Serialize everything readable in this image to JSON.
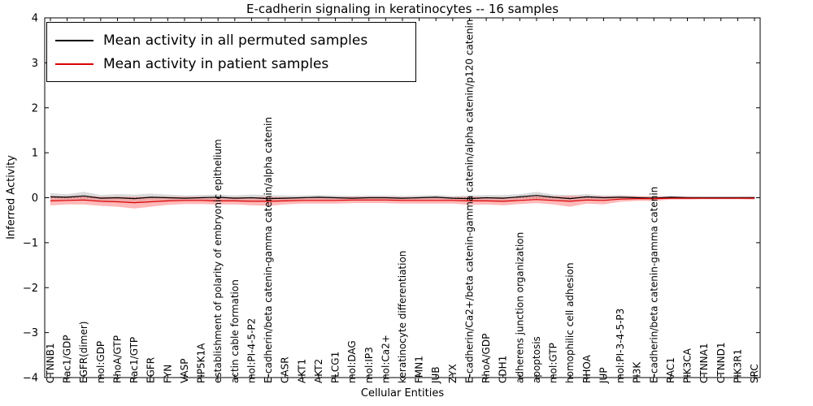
{
  "chart_data": {
    "type": "line",
    "title": "E-cadherin signaling in keratinocytes -- 16 samples",
    "xlabel": "Cellular Entities",
    "ylabel": "Inferred Activity",
    "ylim": [
      -4,
      4
    ],
    "yticks": [
      -4,
      -3,
      -2,
      -1,
      0,
      1,
      2,
      3,
      4
    ],
    "grid": false,
    "zero_line_style": "dotted",
    "legend_position": "upper left",
    "categories": [
      "CTNNB1",
      "Rac1/GDP",
      "EGFR(dimer)",
      "mol:GDP",
      "RhoA/GTP",
      "Rac1/GTP",
      "EGFR",
      "FYN",
      "VASP",
      "PIP5K1A",
      "establishment of polarity of embryonic epithelium",
      "actin cable formation",
      "mol:PI-4-5-P2",
      "E-cadherin/beta catenin-gamma catenin/alpha catenin",
      "CASR",
      "AKT1",
      "AKT2",
      "PLCG1",
      "mol:DAG",
      "mol:IP3",
      "mol:Ca2+",
      "keratinocyte differentiation",
      "FMN1",
      "JUB",
      "ZYX",
      "E-cadherin/Ca2+/beta catenin-gamma catenin/alpha catenin/p120 catenin",
      "RhoA/GDP",
      "CDH1",
      "adherens junction organization",
      "apoptosis",
      "mol:GTP",
      "homophilic cell adhesion",
      "RHOA",
      "JUP",
      "mol:PI-3-4-5-P3",
      "PI3K",
      "E-cadherin/beta catenin-gamma catenin",
      "RAC1",
      "PIK3CA",
      "CTNNA1",
      "CTNND1",
      "PIK3R1",
      "SRC"
    ],
    "series": [
      {
        "id": "permuted",
        "name": "Mean activity in all permuted samples",
        "line_color": "#000000",
        "band_color": "#aaaaaa",
        "band_opacity": 0.45,
        "values": [
          0.02,
          0.01,
          0.04,
          -0.01,
          0,
          -0.02,
          0.01,
          0,
          -0.01,
          0,
          0.01,
          -0.01,
          0,
          -0.02,
          -0.01,
          0,
          0.01,
          0,
          -0.01,
          0,
          0,
          -0.01,
          0,
          0.01,
          -0.01,
          -0.02,
          0,
          -0.01,
          0.02,
          0.05,
          0.01,
          -0.02,
          0.02,
          0,
          0.01,
          0,
          -0.01,
          0.01,
          0,
          0,
          0,
          0,
          0
        ],
        "band": [
          0.08,
          0.07,
          0.09,
          0.07,
          0.08,
          0.09,
          0.08,
          0.07,
          0.06,
          0.06,
          0.06,
          0.06,
          0.07,
          0.08,
          0.06,
          0.05,
          0.05,
          0.05,
          0.05,
          0.05,
          0.05,
          0.05,
          0.05,
          0.05,
          0.05,
          0.07,
          0.06,
          0.07,
          0.06,
          0.08,
          0.06,
          0.08,
          0.06,
          0.05,
          0.05,
          0.04,
          0.04,
          0.03,
          0.03,
          0.03,
          0.03,
          0.03,
          0.03
        ]
      },
      {
        "id": "patient",
        "name": "Mean activity in patient samples",
        "line_color": "#dd0000",
        "band_color": "#ff8080",
        "band_opacity": 0.55,
        "values": [
          -0.07,
          -0.06,
          -0.05,
          -0.08,
          -0.09,
          -0.11,
          -0.09,
          -0.07,
          -0.06,
          -0.06,
          -0.07,
          -0.07,
          -0.08,
          -0.08,
          -0.07,
          -0.06,
          -0.06,
          -0.06,
          -0.05,
          -0.05,
          -0.05,
          -0.06,
          -0.06,
          -0.06,
          -0.06,
          -0.07,
          -0.07,
          -0.08,
          -0.06,
          -0.04,
          -0.06,
          -0.08,
          -0.05,
          -0.06,
          -0.03,
          -0.02,
          -0.02,
          -0.01,
          -0.01,
          -0.01,
          -0.01,
          -0.01,
          -0.01
        ],
        "band": [
          0.1,
          0.09,
          0.1,
          0.1,
          0.11,
          0.13,
          0.11,
          0.09,
          0.08,
          0.08,
          0.08,
          0.08,
          0.09,
          0.1,
          0.08,
          0.07,
          0.07,
          0.07,
          0.07,
          0.07,
          0.07,
          0.07,
          0.07,
          0.07,
          0.07,
          0.09,
          0.08,
          0.09,
          0.08,
          0.08,
          0.09,
          0.12,
          0.08,
          0.09,
          0.06,
          0.05,
          0.05,
          0.03,
          0.03,
          0.02,
          0.02,
          0.02,
          0.03
        ]
      }
    ]
  }
}
